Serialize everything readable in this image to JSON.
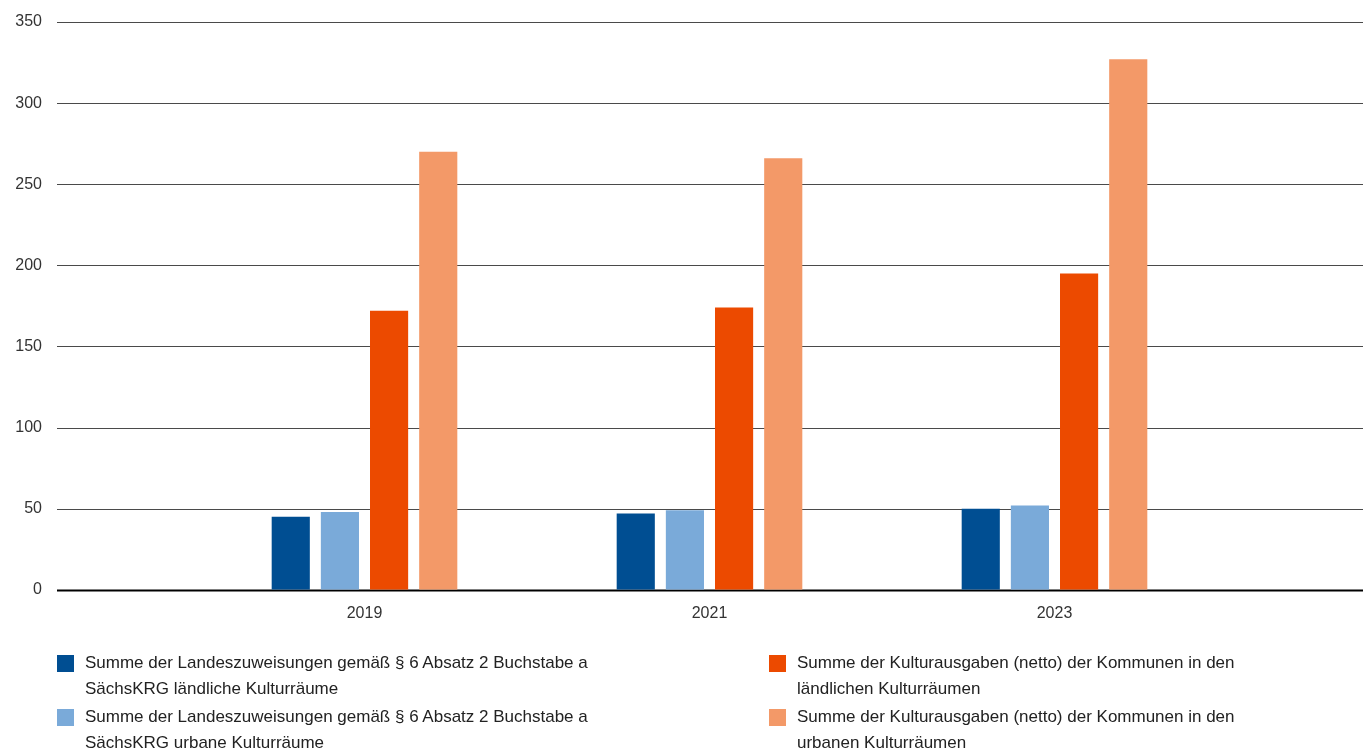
{
  "chart_data": {
    "type": "bar",
    "categories": [
      "2019",
      "2021",
      "2023"
    ],
    "series": [
      {
        "name": "Summe der Landeszuweisungen gemäß § 6 Absatz 2 Buchstabe a SächsKRG ländliche Kulturräume",
        "color": "#004e92",
        "values": [
          45,
          47,
          50
        ]
      },
      {
        "name": "Summe der Landeszuweisungen gemäß § 6 Absatz 2 Buchstabe a SächsKRG urbane Kulturräume",
        "color": "#7aaad9",
        "values": [
          48,
          49,
          52
        ]
      },
      {
        "name": "Summe der Kulturausgaben (netto) der Kommunen in den ländlichen Kulturräumen",
        "color": "#ec4a00",
        "values": [
          172,
          174,
          195
        ]
      },
      {
        "name": "Summe der Kulturausgaben (netto) der Kommunen in den urbanen Kulturräumen",
        "color": "#f39968",
        "values": [
          270,
          266,
          327
        ]
      }
    ],
    "ylim": [
      0,
      350
    ],
    "yticks": [
      0,
      50,
      100,
      150,
      200,
      250,
      300,
      350
    ],
    "grid": "y",
    "legend": "bottom"
  }
}
